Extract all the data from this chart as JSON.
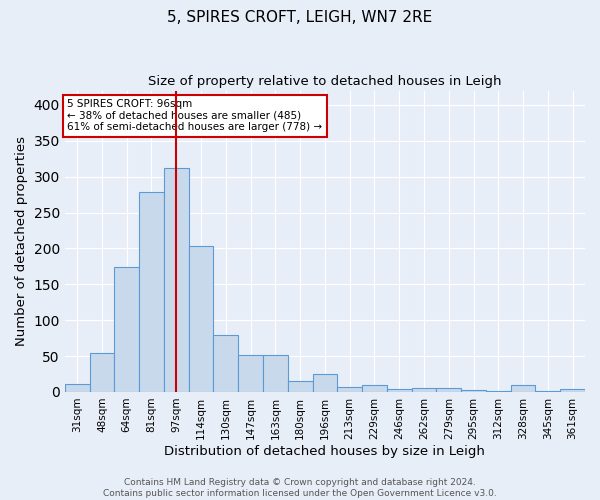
{
  "title": "5, SPIRES CROFT, LEIGH, WN7 2RE",
  "subtitle": "Size of property relative to detached houses in Leigh",
  "xlabel": "Distribution of detached houses by size in Leigh",
  "ylabel": "Number of detached properties",
  "categories": [
    "31sqm",
    "48sqm",
    "64sqm",
    "81sqm",
    "97sqm",
    "114sqm",
    "130sqm",
    "147sqm",
    "163sqm",
    "180sqm",
    "196sqm",
    "213sqm",
    "229sqm",
    "246sqm",
    "262sqm",
    "279sqm",
    "295sqm",
    "312sqm",
    "328sqm",
    "345sqm",
    "361sqm"
  ],
  "values": [
    11,
    54,
    174,
    278,
    312,
    203,
    80,
    51,
    51,
    15,
    25,
    7,
    10,
    4,
    6,
    6,
    3,
    1,
    9,
    1,
    4
  ],
  "bar_color": "#c9d9ec",
  "bar_edge_color": "#5b9bd5",
  "vline_x_index": 4,
  "vline_color": "#cc0000",
  "annotation_text": "5 SPIRES CROFT: 96sqm\n← 38% of detached houses are smaller (485)\n61% of semi-detached houses are larger (778) →",
  "annotation_box_color": "white",
  "annotation_box_edge_color": "#cc0000",
  "ylim": [
    0,
    420
  ],
  "yticks": [
    0,
    50,
    100,
    150,
    200,
    250,
    300,
    350,
    400
  ],
  "footer": "Contains HM Land Registry data © Crown copyright and database right 2024.\nContains public sector information licensed under the Open Government Licence v3.0.",
  "background_color": "#e8eef8",
  "grid_color": "white",
  "title_fontsize": 11,
  "subtitle_fontsize": 9.5,
  "axis_label_fontsize": 9.5,
  "tick_fontsize": 7.5,
  "footer_fontsize": 6.5
}
